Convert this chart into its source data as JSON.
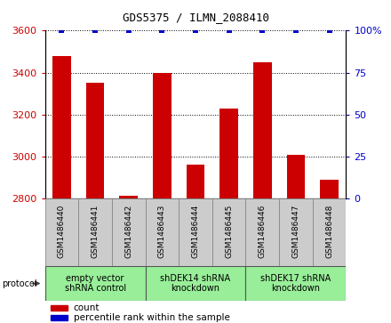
{
  "title": "GDS5375 / ILMN_2088410",
  "samples": [
    "GSM1486440",
    "GSM1486441",
    "GSM1486442",
    "GSM1486443",
    "GSM1486444",
    "GSM1486445",
    "GSM1486446",
    "GSM1486447",
    "GSM1486448"
  ],
  "counts": [
    3480,
    3350,
    2815,
    3400,
    2960,
    3230,
    3450,
    3010,
    2890
  ],
  "percentile_ranks": [
    100,
    100,
    100,
    100,
    100,
    100,
    100,
    100,
    100
  ],
  "ylim_left": [
    2800,
    3600
  ],
  "ylim_right": [
    0,
    100
  ],
  "yticks_left": [
    2800,
    3000,
    3200,
    3400,
    3600
  ],
  "yticks_right": [
    0,
    25,
    50,
    75,
    100
  ],
  "bar_color": "#cc0000",
  "dot_color": "#0000cc",
  "bar_width": 0.55,
  "groups": [
    {
      "label": "empty vector\nshRNA control",
      "start": 0,
      "end": 3
    },
    {
      "label": "shDEK14 shRNA\nknockdown",
      "start": 3,
      "end": 6
    },
    {
      "label": "shDEK17 shRNA\nknockdown",
      "start": 6,
      "end": 9
    }
  ],
  "group_color": "#99ee99",
  "group_border_color": "#555555",
  "sample_box_color": "#cccccc",
  "sample_box_border": "#888888",
  "legend_count_label": "count",
  "legend_pct_label": "percentile rank within the sample",
  "protocol_label": "protocol",
  "plot_bg_color": "#ffffff",
  "title_fontsize": 9,
  "ytick_fontsize": 8,
  "sample_label_fontsize": 6.5,
  "group_label_fontsize": 7,
  "legend_fontsize": 7.5
}
